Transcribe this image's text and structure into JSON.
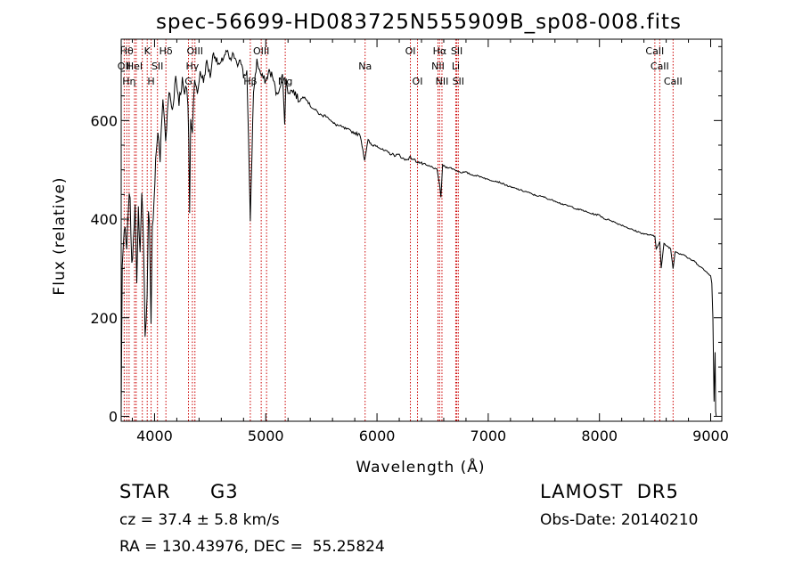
{
  "chart_data": {
    "type": "line",
    "title": "spec-56699-HD083725N555909B_sp08-008.fits",
    "xlabel": "Wavelength (Å)",
    "ylabel": "Flux (relative)",
    "xlim": [
      3700,
      9100
    ],
    "ylim": [
      -10,
      765
    ],
    "xticks": [
      4000,
      5000,
      6000,
      7000,
      8000,
      9000
    ],
    "yticks": [
      0,
      200,
      400,
      600
    ],
    "grid": false,
    "legend": "none",
    "line_color": "#000000",
    "marker_line_color": "#cc0000",
    "series": [
      {
        "x": [
          3700,
          3710,
          3720,
          3735,
          3750,
          3765,
          3780,
          3795,
          3810,
          3825,
          3840,
          3855,
          3870,
          3885,
          3900,
          3915,
          3933,
          3945,
          3955,
          3968,
          3980,
          3995,
          4010,
          4030,
          4050,
          4075,
          4100,
          4130,
          4160,
          4190,
          4220,
          4250,
          4270,
          4290,
          4300,
          4308,
          4315,
          4325,
          4340,
          4360,
          4385,
          4410,
          4440,
          4470,
          4500,
          4530,
          4560,
          4590,
          4620,
          4650,
          4680,
          4710,
          4740,
          4770,
          4800,
          4830,
          4861,
          4890,
          4920,
          4960,
          5000,
          5030,
          5060,
          5100,
          5150,
          5170,
          5183,
          5200,
          5250,
          5300,
          5350,
          5400,
          5450,
          5500,
          5550,
          5600,
          5650,
          5700,
          5750,
          5800,
          5850,
          5889,
          5896,
          5920,
          5950,
          6000,
          6050,
          6100,
          6150,
          6200,
          6250,
          6300,
          6350,
          6400,
          6450,
          6500,
          6540,
          6563,
          6575,
          6590,
          6620,
          6650,
          6700,
          6750,
          6800,
          6850,
          6900,
          6950,
          7000,
          7050,
          7100,
          7150,
          7200,
          7250,
          7300,
          7350,
          7400,
          7450,
          7500,
          7550,
          7600,
          7650,
          7700,
          7750,
          7800,
          7850,
          7900,
          7950,
          8000,
          8050,
          8100,
          8150,
          8200,
          8250,
          8300,
          8350,
          8400,
          8450,
          8498,
          8510,
          8542,
          8555,
          8580,
          8610,
          8640,
          8662,
          8680,
          8720,
          8760,
          8800,
          8850,
          8900,
          8950,
          8980,
          9000,
          9010,
          9020,
          9030,
          9040,
          9045,
          9050
        ],
        "y": [
          10,
          310,
          350,
          380,
          330,
          430,
          450,
          300,
          360,
          440,
          260,
          420,
          330,
          460,
          360,
          170,
          240,
          410,
          380,
          180,
          380,
          440,
          520,
          580,
          520,
          650,
          560,
          660,
          620,
          690,
          640,
          680,
          650,
          670,
          630,
          560,
          410,
          600,
          580,
          690,
          650,
          700,
          680,
          720,
          690,
          740,
          720,
          710,
          730,
          740,
          720,
          735,
          710,
          730,
          690,
          700,
          400,
          660,
          720,
          690,
          680,
          700,
          690,
          650,
          690,
          600,
          680,
          660,
          660,
          640,
          650,
          630,
          620,
          610,
          610,
          595,
          590,
          585,
          580,
          575,
          570,
          520,
          530,
          560,
          550,
          550,
          540,
          535,
          530,
          530,
          520,
          525,
          518,
          513,
          508,
          505,
          500,
          470,
          445,
          510,
          505,
          505,
          500,
          495,
          495,
          490,
          488,
          485,
          480,
          478,
          475,
          470,
          465,
          462,
          458,
          455,
          450,
          447,
          445,
          440,
          437,
          432,
          428,
          425,
          420,
          418,
          413,
          410,
          408,
          400,
          398,
          392,
          388,
          383,
          378,
          374,
          370,
          368,
          365,
          340,
          355,
          300,
          350,
          345,
          340,
          300,
          335,
          330,
          328,
          320,
          315,
          305,
          295,
          290,
          285,
          270,
          200,
          30,
          130,
          10,
          0
        ]
      }
    ],
    "lines": [
      {
        "x": 3727,
        "label": "OII",
        "row": 1
      },
      {
        "x": 3750,
        "label": "Hθ",
        "row": 0
      },
      {
        "x": 3771,
        "label": "Hη",
        "row": 2
      },
      {
        "x": 3820,
        "label": "HeI",
        "row": 1
      },
      {
        "x": 3835,
        "label": "",
        "row": 2
      },
      {
        "x": 3890,
        "label": "",
        "row": 2
      },
      {
        "x": 3934,
        "label": "K",
        "row": 0
      },
      {
        "x": 3969,
        "label": "H",
        "row": 2
      },
      {
        "x": 4026,
        "label": "SII",
        "row": 1
      },
      {
        "x": 4102,
        "label": "Hδ",
        "row": 0
      },
      {
        "x": 4305,
        "label": "G",
        "row": 2
      },
      {
        "x": 4340,
        "label": "Hγ",
        "row": 1
      },
      {
        "x": 4363,
        "label": "OIII",
        "row": 0
      },
      {
        "x": 4861,
        "label": "Hβ",
        "row": 2
      },
      {
        "x": 4959,
        "label": "OIII",
        "row": 0
      },
      {
        "x": 5007,
        "label": "",
        "row": 1
      },
      {
        "x": 5175,
        "label": "Mg",
        "row": 2
      },
      {
        "x": 5893,
        "label": "Na",
        "row": 1
      },
      {
        "x": 6300,
        "label": "OI",
        "row": 0
      },
      {
        "x": 6364,
        "label": "OI",
        "row": 2
      },
      {
        "x": 6548,
        "label": "NII",
        "row": 1
      },
      {
        "x": 6563,
        "label": "Hα",
        "row": 0
      },
      {
        "x": 6584,
        "label": "NII",
        "row": 2
      },
      {
        "x": 6708,
        "label": "Li",
        "row": 1
      },
      {
        "x": 6717,
        "label": "SII",
        "row": 0
      },
      {
        "x": 6731,
        "label": "SII",
        "row": 2
      },
      {
        "x": 8498,
        "label": "CaII",
        "row": 0
      },
      {
        "x": 8542,
        "label": "CaII",
        "row": 1
      },
      {
        "x": 8662,
        "label": "CaII",
        "row": 2
      }
    ]
  },
  "info": {
    "class": "STAR",
    "subclass": "G3",
    "survey": "LAMOST  DR5",
    "cz": "cz = 37.4 ± 5.8 km/s",
    "obs_date": "Obs-Date: 20140210",
    "coords": "RA = 130.43976, DEC =  55.25824"
  }
}
